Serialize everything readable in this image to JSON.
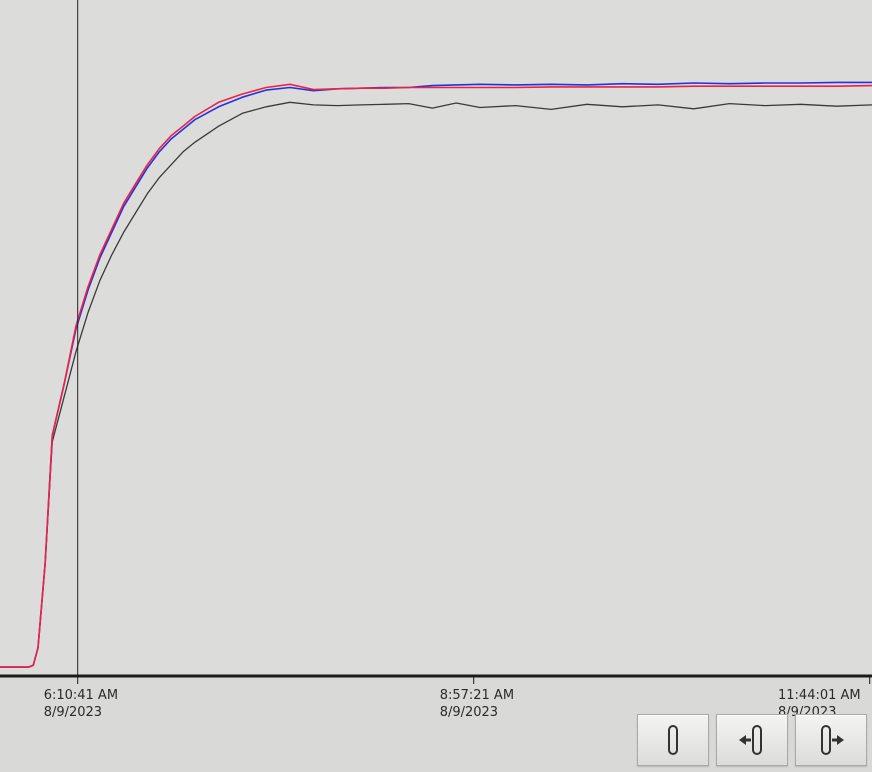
{
  "chart_data": {
    "type": "line",
    "title": "",
    "xlabel": "",
    "ylabel": "",
    "x_ticks": [
      {
        "time": "6:10:41 AM",
        "date": "8/9/2023"
      },
      {
        "time": "8:57:21 AM",
        "date": "8/9/2023"
      },
      {
        "time": "11:44:01 AM",
        "date": "8/9/2023"
      }
    ],
    "x_range": [
      "5:38 AM",
      "11:45 AM"
    ],
    "y_range": [
      0,
      100
    ],
    "grid": false,
    "legend": "none",
    "cursor": {
      "time": "6:10:41 AM"
    },
    "series": [
      {
        "color": "#ee2244",
        "x": [
          "5:38",
          "5:42",
          "5:46",
          "5:50",
          "5:52",
          "5:54",
          "5:57",
          "6:00",
          "6:05",
          "6:10",
          "6:15",
          "6:20",
          "6:25",
          "6:30",
          "6:35",
          "6:40",
          "6:45",
          "6:50",
          "6:55",
          "7:00",
          "7:10",
          "7:20",
          "7:30",
          "7:40",
          "7:50",
          "8:00",
          "8:10",
          "8:20",
          "8:30",
          "8:40",
          "8:50",
          "9:00",
          "9:15",
          "9:30",
          "9:45",
          "10:00",
          "10:15",
          "10:30",
          "10:45",
          "11:00",
          "11:15",
          "11:30",
          "11:45"
        ],
        "values": [
          2.0,
          2.0,
          2.0,
          2.0,
          2.3,
          5.0,
          18.0,
          38.0,
          46.0,
          55.0,
          61.0,
          66.0,
          70.0,
          74.0,
          77.0,
          80.0,
          82.5,
          84.5,
          86.0,
          87.5,
          89.7,
          91.0,
          92.0,
          92.5,
          91.7,
          91.8,
          91.9,
          91.9,
          92.0,
          92.0,
          92.0,
          92.0,
          92.0,
          92.1,
          92.1,
          92.1,
          92.1,
          92.2,
          92.2,
          92.2,
          92.2,
          92.2,
          92.3
        ]
      },
      {
        "color": "#2233dd",
        "x": [
          "5:38",
          "5:42",
          "5:46",
          "5:50",
          "5:52",
          "5:54",
          "5:57",
          "6:00",
          "6:05",
          "6:10",
          "6:15",
          "6:20",
          "6:25",
          "6:30",
          "6:35",
          "6:40",
          "6:45",
          "6:50",
          "6:55",
          "7:00",
          "7:10",
          "7:20",
          "7:30",
          "7:40",
          "7:50",
          "8:00",
          "8:10",
          "8:20",
          "8:30",
          "8:40",
          "8:50",
          "9:00",
          "9:15",
          "9:30",
          "9:45",
          "10:00",
          "10:15",
          "10:30",
          "10:45",
          "11:00",
          "11:15",
          "11:30",
          "11:45"
        ],
        "values": [
          2.0,
          2.0,
          2.0,
          2.0,
          2.3,
          5.0,
          18.0,
          38.0,
          46.0,
          54.5,
          60.5,
          65.5,
          69.5,
          73.5,
          76.5,
          79.5,
          82.0,
          84.0,
          85.5,
          87.0,
          89.0,
          90.5,
          91.6,
          92.0,
          91.5,
          91.8,
          91.9,
          92.0,
          92.0,
          92.3,
          92.4,
          92.5,
          92.4,
          92.5,
          92.4,
          92.6,
          92.5,
          92.7,
          92.6,
          92.7,
          92.7,
          92.8,
          92.8
        ]
      },
      {
        "color": "#3a3a3a",
        "x": [
          "5:38",
          "5:42",
          "5:46",
          "5:50",
          "5:52",
          "5:54",
          "5:57",
          "6:00",
          "6:05",
          "6:10",
          "6:15",
          "6:20",
          "6:25",
          "6:30",
          "6:35",
          "6:40",
          "6:45",
          "6:50",
          "6:55",
          "7:00",
          "7:10",
          "7:20",
          "7:30",
          "7:40",
          "7:50",
          "8:00",
          "8:10",
          "8:20",
          "8:30",
          "8:40",
          "8:50",
          "9:00",
          "9:15",
          "9:30",
          "9:45",
          "10:00",
          "10:15",
          "10:30",
          "10:45",
          "11:00",
          "11:15",
          "11:30",
          "11:45"
        ],
        "values": [
          2.0,
          2.0,
          2.0,
          2.0,
          2.3,
          5.0,
          18.0,
          37.0,
          44.0,
          51.0,
          57.0,
          62.0,
          66.0,
          69.5,
          72.5,
          75.5,
          78.0,
          80.0,
          82.0,
          83.5,
          86.0,
          88.0,
          89.0,
          89.7,
          89.3,
          89.2,
          89.3,
          89.4,
          89.5,
          88.8,
          89.6,
          88.9,
          89.2,
          88.6,
          89.4,
          89.0,
          89.3,
          88.7,
          89.5,
          89.2,
          89.4,
          89.1,
          89.3
        ]
      }
    ]
  },
  "controls": {
    "buttons": [
      {
        "icon": "pause-bar-icon"
      },
      {
        "icon": "scroll-left-icon"
      },
      {
        "icon": "scroll-right-icon"
      }
    ]
  }
}
